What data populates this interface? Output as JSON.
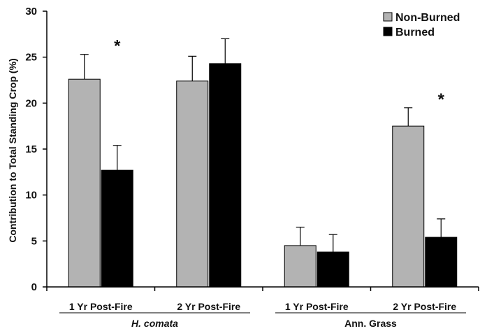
{
  "chart_data": {
    "type": "bar",
    "ylabel": "Contribution to Total Standing Crop (%)",
    "ylim": [
      0,
      30
    ],
    "yticks": [
      "0",
      "5",
      "10",
      "15",
      "20",
      "25",
      "30"
    ],
    "categories": [
      "1 Yr Post-Fire",
      "2 Yr Post-Fire",
      "1 Yr Post-Fire",
      "2 Yr Post-Fire"
    ],
    "groups": [
      {
        "label": "H. comata",
        "italic": true,
        "categories": [
          0,
          1
        ]
      },
      {
        "label": "Ann. Grass",
        "italic": false,
        "categories": [
          2,
          3
        ]
      }
    ],
    "series": [
      {
        "name": "Non-Burned",
        "color": "#b3b3b3",
        "values": [
          22.6,
          22.4,
          4.5,
          17.5
        ],
        "errors": [
          2.7,
          2.7,
          2.0,
          2.0
        ]
      },
      {
        "name": "Burned",
        "color": "#000000",
        "values": [
          12.7,
          24.3,
          3.8,
          5.4
        ],
        "errors": [
          2.7,
          2.7,
          1.9,
          2.0
        ]
      }
    ],
    "annotations": [
      {
        "text": "*",
        "category": 0
      },
      {
        "text": "*",
        "category": 3
      }
    ],
    "legend_position": "top-right",
    "grid": false
  }
}
